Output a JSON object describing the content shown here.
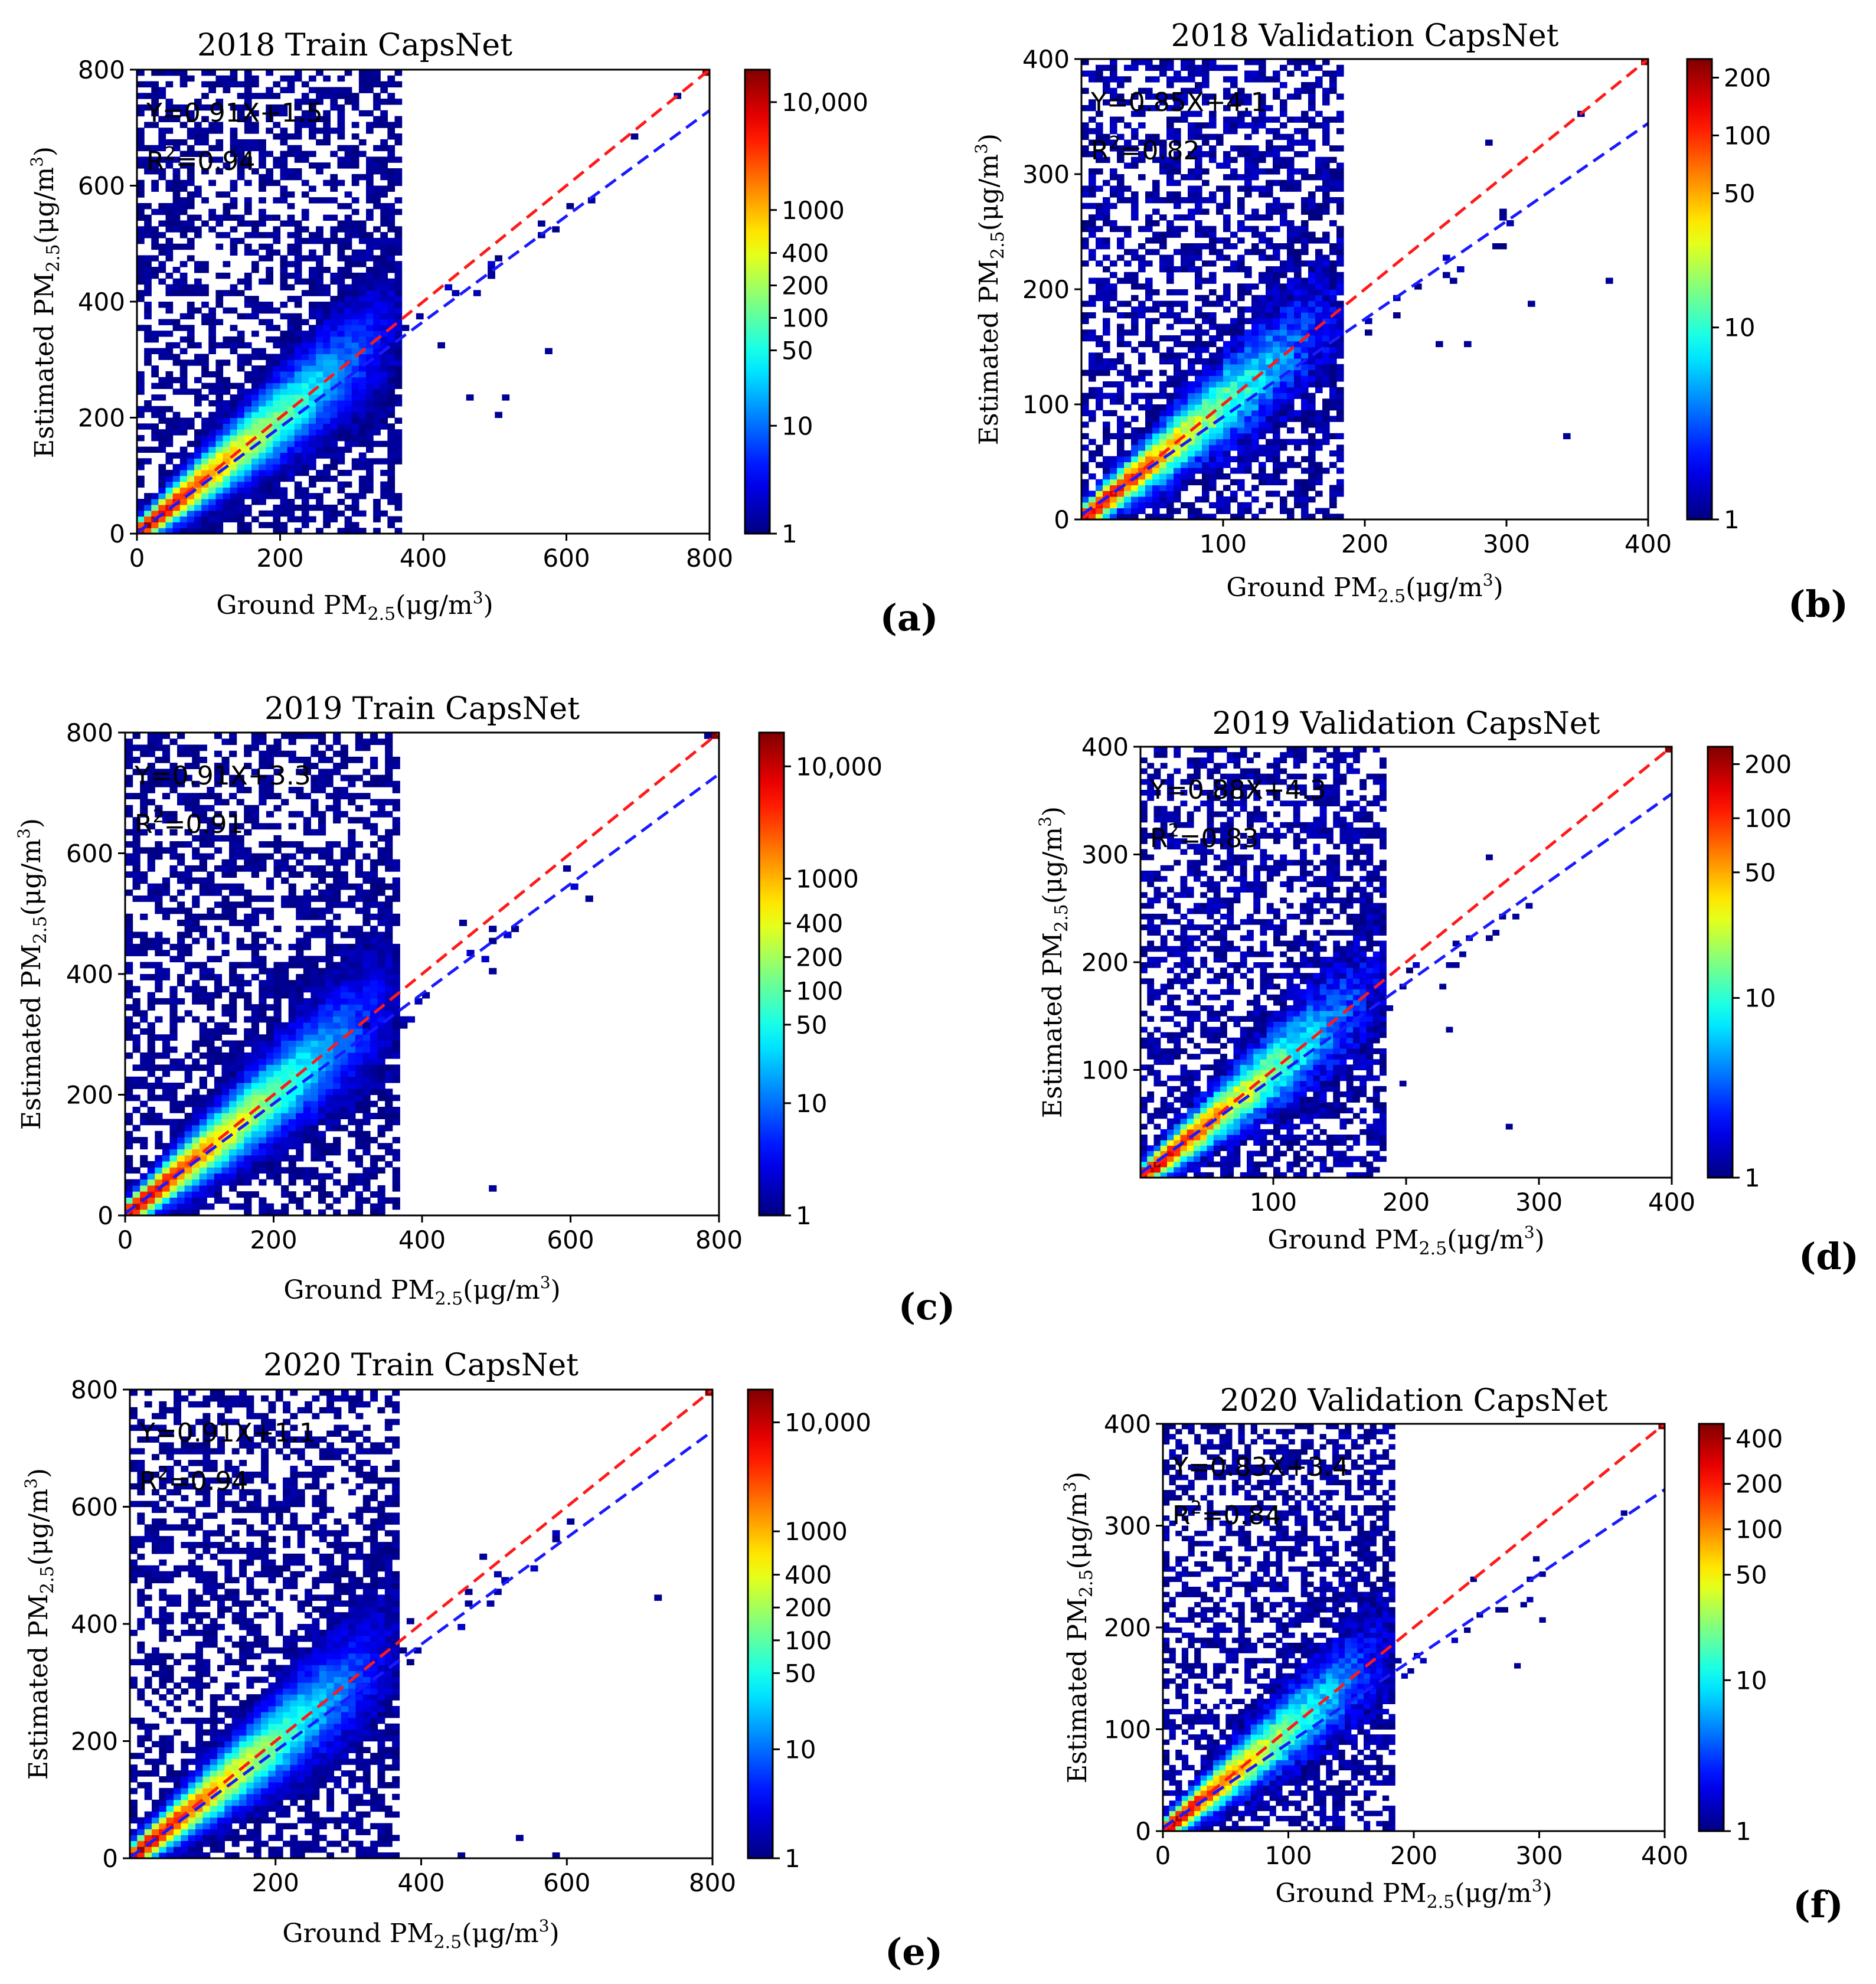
{
  "chart_data": [
    {
      "type": "heatmap",
      "panel_label": "(a)",
      "title": "2018 Train CapsNet",
      "xlabel": {
        "main": "Ground PM",
        "sub": "2.5",
        "tail": "(μg/m",
        "sup": "3",
        "end": ")"
      },
      "ylabel": {
        "main": "Estimated PM",
        "sub": "2.5",
        "tail": "(μg/m",
        "sup": "3",
        "end": ")"
      },
      "xlim": [
        0,
        800
      ],
      "ylim": [
        0,
        800
      ],
      "xticks": [
        "0",
        "200",
        "400",
        "600",
        "800"
      ],
      "yticks": [
        "0",
        "200",
        "400",
        "600",
        "800"
      ],
      "equation": "Y=0.91X+1.5",
      "r2_prefix": "R",
      "r2_sup": "2",
      "r2_value": "=0.94",
      "fit": {
        "slope": 0.91,
        "intercept": 1.5
      },
      "colorbar": {
        "scale": "log",
        "min": 1,
        "max": 20000,
        "ticks": [
          1,
          10,
          50,
          100,
          200,
          400,
          1000,
          10000
        ],
        "tick_labels": [
          "1",
          "10",
          "50",
          "100",
          "200",
          "400",
          "1000",
          "10,000"
        ]
      },
      "outliers": [
        [
          20,
          200
        ],
        [
          420,
          320
        ],
        [
          570,
          310
        ],
        [
          510,
          230
        ],
        [
          505,
          200
        ],
        [
          290,
          60
        ],
        [
          350,
          50
        ],
        [
          460,
          230
        ],
        [
          630,
          570
        ],
        [
          690,
          680
        ],
        [
          750,
          750
        ],
        [
          800,
          800
        ]
      ]
    },
    {
      "type": "heatmap",
      "panel_label": "(b)",
      "title": "2018 Validation CapsNet",
      "xlabel": {
        "main": "Ground PM",
        "sub": "2.5",
        "tail": "(μg/m",
        "sup": "3",
        "end": ")"
      },
      "ylabel": {
        "main": "Estimated PM",
        "sub": "2.5",
        "tail": "(μg/m",
        "sup": "3",
        "end": ")"
      },
      "xlim": [
        0,
        400
      ],
      "ylim": [
        0,
        400
      ],
      "xticks": [
        "100",
        "200",
        "300",
        "400"
      ],
      "yticks": [
        "0",
        "100",
        "200",
        "300",
        "400"
      ],
      "equation": "Y=0.85X+4.1",
      "r2_prefix": "R",
      "r2_sup": "2",
      "r2_value": "=0.82",
      "fit": {
        "slope": 0.85,
        "intercept": 4.1
      },
      "colorbar": {
        "scale": "log",
        "min": 1,
        "max": 250,
        "ticks": [
          1,
          10,
          50,
          100,
          200
        ],
        "tick_labels": [
          "1",
          "10",
          "50",
          "100",
          "200"
        ]
      },
      "outliers": [
        [
          148,
          345
        ],
        [
          178,
          288
        ],
        [
          370,
          208
        ],
        [
          318,
          188
        ],
        [
          344,
          72
        ],
        [
          285,
          325
        ],
        [
          350,
          350
        ],
        [
          400,
          400
        ],
        [
          270,
          150
        ],
        [
          250,
          152
        ]
      ]
    },
    {
      "type": "heatmap",
      "panel_label": "(c)",
      "title": "2019 Train CapsNet",
      "xlabel": {
        "main": "Ground PM",
        "sub": "2.5",
        "tail": "(μg/m",
        "sup": "3",
        "end": ")"
      },
      "ylabel": {
        "main": "Estimated PM",
        "sub": "2.5",
        "tail": "(μg/m",
        "sup": "3",
        "end": ")"
      },
      "xlim": [
        0,
        800
      ],
      "ylim": [
        0,
        800
      ],
      "xticks": [
        "0",
        "200",
        "400",
        "600",
        "800"
      ],
      "yticks": [
        "0",
        "200",
        "400",
        "600",
        "800"
      ],
      "equation": "Y=0.91X+3.3",
      "r2_prefix": "R",
      "r2_sup": "2",
      "r2_value": "=0.91",
      "fit": {
        "slope": 0.91,
        "intercept": 3.3
      },
      "colorbar": {
        "scale": "log",
        "min": 1,
        "max": 20000,
        "ticks": [
          1,
          10,
          50,
          100,
          200,
          400,
          1000,
          10000
        ],
        "tick_labels": [
          "1",
          "10",
          "50",
          "100",
          "200",
          "400",
          "1000",
          "10,000"
        ]
      },
      "outliers": [
        [
          620,
          520
        ],
        [
          495,
          40
        ],
        [
          330,
          30
        ],
        [
          340,
          430
        ],
        [
          490,
          405
        ],
        [
          320,
          315
        ],
        [
          450,
          480
        ],
        [
          800,
          800
        ],
        [
          785,
          790
        ],
        [
          330,
          780
        ]
      ]
    },
    {
      "type": "heatmap",
      "panel_label": "(d)",
      "title": "2019 Validation CapsNet",
      "xlabel": {
        "main": "Ground PM",
        "sub": "2.5",
        "tail": "(μg/m",
        "sup": "3",
        "end": ")"
      },
      "ylabel": {
        "main": "Estimated PM",
        "sub": "2.5",
        "tail": "(μg/m",
        "sup": "3",
        "end": ")"
      },
      "xlim": [
        0,
        400
      ],
      "ylim": [
        0,
        400
      ],
      "xticks": [
        "100",
        "200",
        "300",
        "400"
      ],
      "yticks": [
        "100",
        "200",
        "300",
        "400"
      ],
      "equation": "Y=0.88X+4.3",
      "r2_prefix": "R",
      "r2_sup": "2",
      "r2_value": "=0.83",
      "fit": {
        "slope": 0.88,
        "intercept": 4.3
      },
      "colorbar": {
        "scale": "log",
        "min": 1,
        "max": 250,
        "ticks": [
          1,
          10,
          50,
          100,
          200
        ],
        "tick_labels": [
          "1",
          "10",
          "50",
          "100",
          "200"
        ]
      },
      "outliers": [
        [
          142,
          348
        ],
        [
          160,
          268
        ],
        [
          262,
          298
        ],
        [
          275,
          48
        ],
        [
          198,
          88
        ],
        [
          230,
          138
        ],
        [
          400,
          400
        ],
        [
          225,
          175
        ]
      ]
    },
    {
      "type": "heatmap",
      "panel_label": "(e)",
      "title": "2020 Train CapsNet",
      "xlabel": {
        "main": "Ground PM",
        "sub": "2.5",
        "tail": "(μg/m",
        "sup": "3",
        "end": ")"
      },
      "ylabel": {
        "main": "Estimated PM",
        "sub": "2.5",
        "tail": "(μg/m",
        "sup": "3",
        "end": ")"
      },
      "xlim": [
        0,
        800
      ],
      "ylim": [
        0,
        800
      ],
      "xticks": [
        "200",
        "400",
        "600",
        "800"
      ],
      "yticks": [
        "0",
        "200",
        "400",
        "600",
        "800"
      ],
      "equation": "Y=0.91X+1.1",
      "r2_prefix": "R",
      "r2_sup": "2",
      "r2_value": "=0.94",
      "fit": {
        "slope": 0.91,
        "intercept": 1.1
      },
      "colorbar": {
        "scale": "log",
        "min": 1,
        "max": 20000,
        "ticks": [
          1,
          10,
          50,
          100,
          200,
          400,
          1000,
          10000
        ],
        "tick_labels": [
          "1",
          "10",
          "50",
          "100",
          "200",
          "400",
          "1000",
          "10,000"
        ]
      },
      "outliers": [
        [
          720,
          445
        ],
        [
          535,
          38
        ],
        [
          585,
          5
        ],
        [
          450,
          5
        ],
        [
          305,
          145
        ],
        [
          480,
          515
        ],
        [
          800,
          800
        ],
        [
          10,
          200
        ],
        [
          380,
          405
        ]
      ]
    },
    {
      "type": "heatmap",
      "panel_label": "(f)",
      "title": "2020 Validation CapsNet",
      "xlabel": {
        "main": "Ground PM",
        "sub": "2.5",
        "tail": "(μg/m",
        "sup": "3",
        "end": ")"
      },
      "ylabel": {
        "main": "Estimated PM",
        "sub": "2.5",
        "tail": "(μg/m",
        "sup": "3",
        "end": ")"
      },
      "xlim": [
        0,
        400
      ],
      "ylim": [
        0,
        400
      ],
      "xticks": [
        "0",
        "100",
        "200",
        "300",
        "400"
      ],
      "yticks": [
        "0",
        "100",
        "200",
        "300",
        "400"
      ],
      "equation": "Y=0.83X+3.4",
      "r2_prefix": "R",
      "r2_sup": "2",
      "r2_value": "=0.84",
      "fit": {
        "slope": 0.83,
        "intercept": 3.4
      },
      "colorbar": {
        "scale": "log",
        "min": 1,
        "max": 500,
        "ticks": [
          1,
          10,
          50,
          100,
          200,
          400
        ],
        "tick_labels": [
          "1",
          "10",
          "50",
          "100",
          "200",
          "400"
        ]
      },
      "outliers": [
        [
          298,
          268
        ],
        [
          300,
          208
        ],
        [
          280,
          162
        ],
        [
          248,
          245
        ],
        [
          365,
          310
        ],
        [
          400,
          400
        ],
        [
          45,
          162
        ],
        [
          130,
          57
        ]
      ]
    }
  ]
}
